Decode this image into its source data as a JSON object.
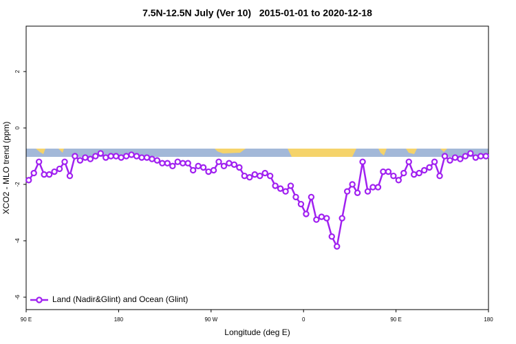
{
  "chart_data": {
    "type": "line",
    "title": "7.5N-12.5N July (Ver 10)   2015-01-01 to 2020-12-18",
    "xlabel": "Longitude (deg E)",
    "ylabel": "XCO2 - MLO trend (ppm)",
    "xlim": [
      90,
      540
    ],
    "xticks": [
      {
        "value": 90,
        "label": "90 E"
      },
      180,
      {
        "value": 270,
        "label": "90 W"
      },
      {
        "value": 360,
        "label": "0"
      },
      {
        "value": 450,
        "label": "90 E"
      },
      {
        "value": 540,
        "label": "180"
      }
    ],
    "ylim": [
      -6.44,
      3.61
    ],
    "yticks": [
      -6,
      -4,
      -2,
      0,
      2
    ],
    "legend": "bottom-left",
    "x": [
      92.5,
      97.5,
      102.5,
      107.5,
      112.5,
      117.5,
      122.5,
      127.5,
      132.5,
      137.5,
      142.5,
      147.5,
      152.5,
      157.5,
      162.5,
      167.5,
      172.5,
      177.5,
      182.5,
      187.5,
      192.5,
      197.5,
      202.5,
      207.5,
      212.5,
      217.5,
      222.5,
      227.5,
      232.5,
      237.5,
      242.5,
      247.5,
      252.5,
      257.5,
      262.5,
      267.5,
      272.5,
      277.5,
      282.5,
      287.5,
      292.5,
      297.5,
      302.5,
      307.5,
      312.5,
      317.5,
      322.5,
      327.5,
      332.5,
      337.5,
      342.5,
      347.5,
      352.5,
      357.5,
      362.5,
      367.5,
      372.5,
      377.5,
      382.5,
      387.5,
      392.5,
      397.5,
      402.5,
      407.5,
      412.5,
      417.5,
      422.5,
      427.5,
      432.5,
      437.5,
      442.5,
      447.5,
      452.5,
      457.5,
      462.5,
      467.5,
      472.5,
      477.5,
      482.5,
      487.5,
      492.5,
      497.5,
      502.5,
      507.5,
      512.5,
      517.5,
      522.5,
      527.5,
      532.5,
      537.5
    ],
    "series": [
      {
        "name": "Land (Nadir&Glint) and Ocean (Glint)",
        "color": "#a020f0",
        "values": [
          -1.85,
          -1.6,
          -1.2,
          -1.65,
          -1.65,
          -1.55,
          -1.45,
          -1.2,
          -1.7,
          -1.0,
          -1.15,
          -1.05,
          -1.1,
          -1.0,
          -0.9,
          -1.05,
          -1.0,
          -1.0,
          -1.05,
          -1.0,
          -0.95,
          -1.0,
          -1.05,
          -1.05,
          -1.1,
          -1.15,
          -1.25,
          -1.25,
          -1.35,
          -1.2,
          -1.25,
          -1.25,
          -1.5,
          -1.35,
          -1.4,
          -1.55,
          -1.5,
          -1.2,
          -1.35,
          -1.25,
          -1.3,
          -1.4,
          -1.7,
          -1.75,
          -1.65,
          -1.7,
          -1.6,
          -1.7,
          -2.05,
          -2.15,
          -2.25,
          -2.05,
          -2.45,
          -2.7,
          -3.05,
          -2.45,
          -3.25,
          -3.15,
          -3.2,
          -3.85,
          -4.2,
          -3.2,
          -2.25,
          -2.0,
          -2.3,
          -1.2,
          -2.25,
          -2.1,
          -2.1,
          -1.55,
          -1.55,
          -1.7,
          -1.85,
          -1.6,
          -1.2,
          -1.65,
          -1.6,
          -1.5,
          -1.4,
          -1.2,
          -1.7,
          -1.0,
          -1.15,
          -1.05,
          -1.1,
          -1.0,
          -0.9,
          -1.05,
          -1.0,
          -1.0
        ]
      }
    ]
  }
}
